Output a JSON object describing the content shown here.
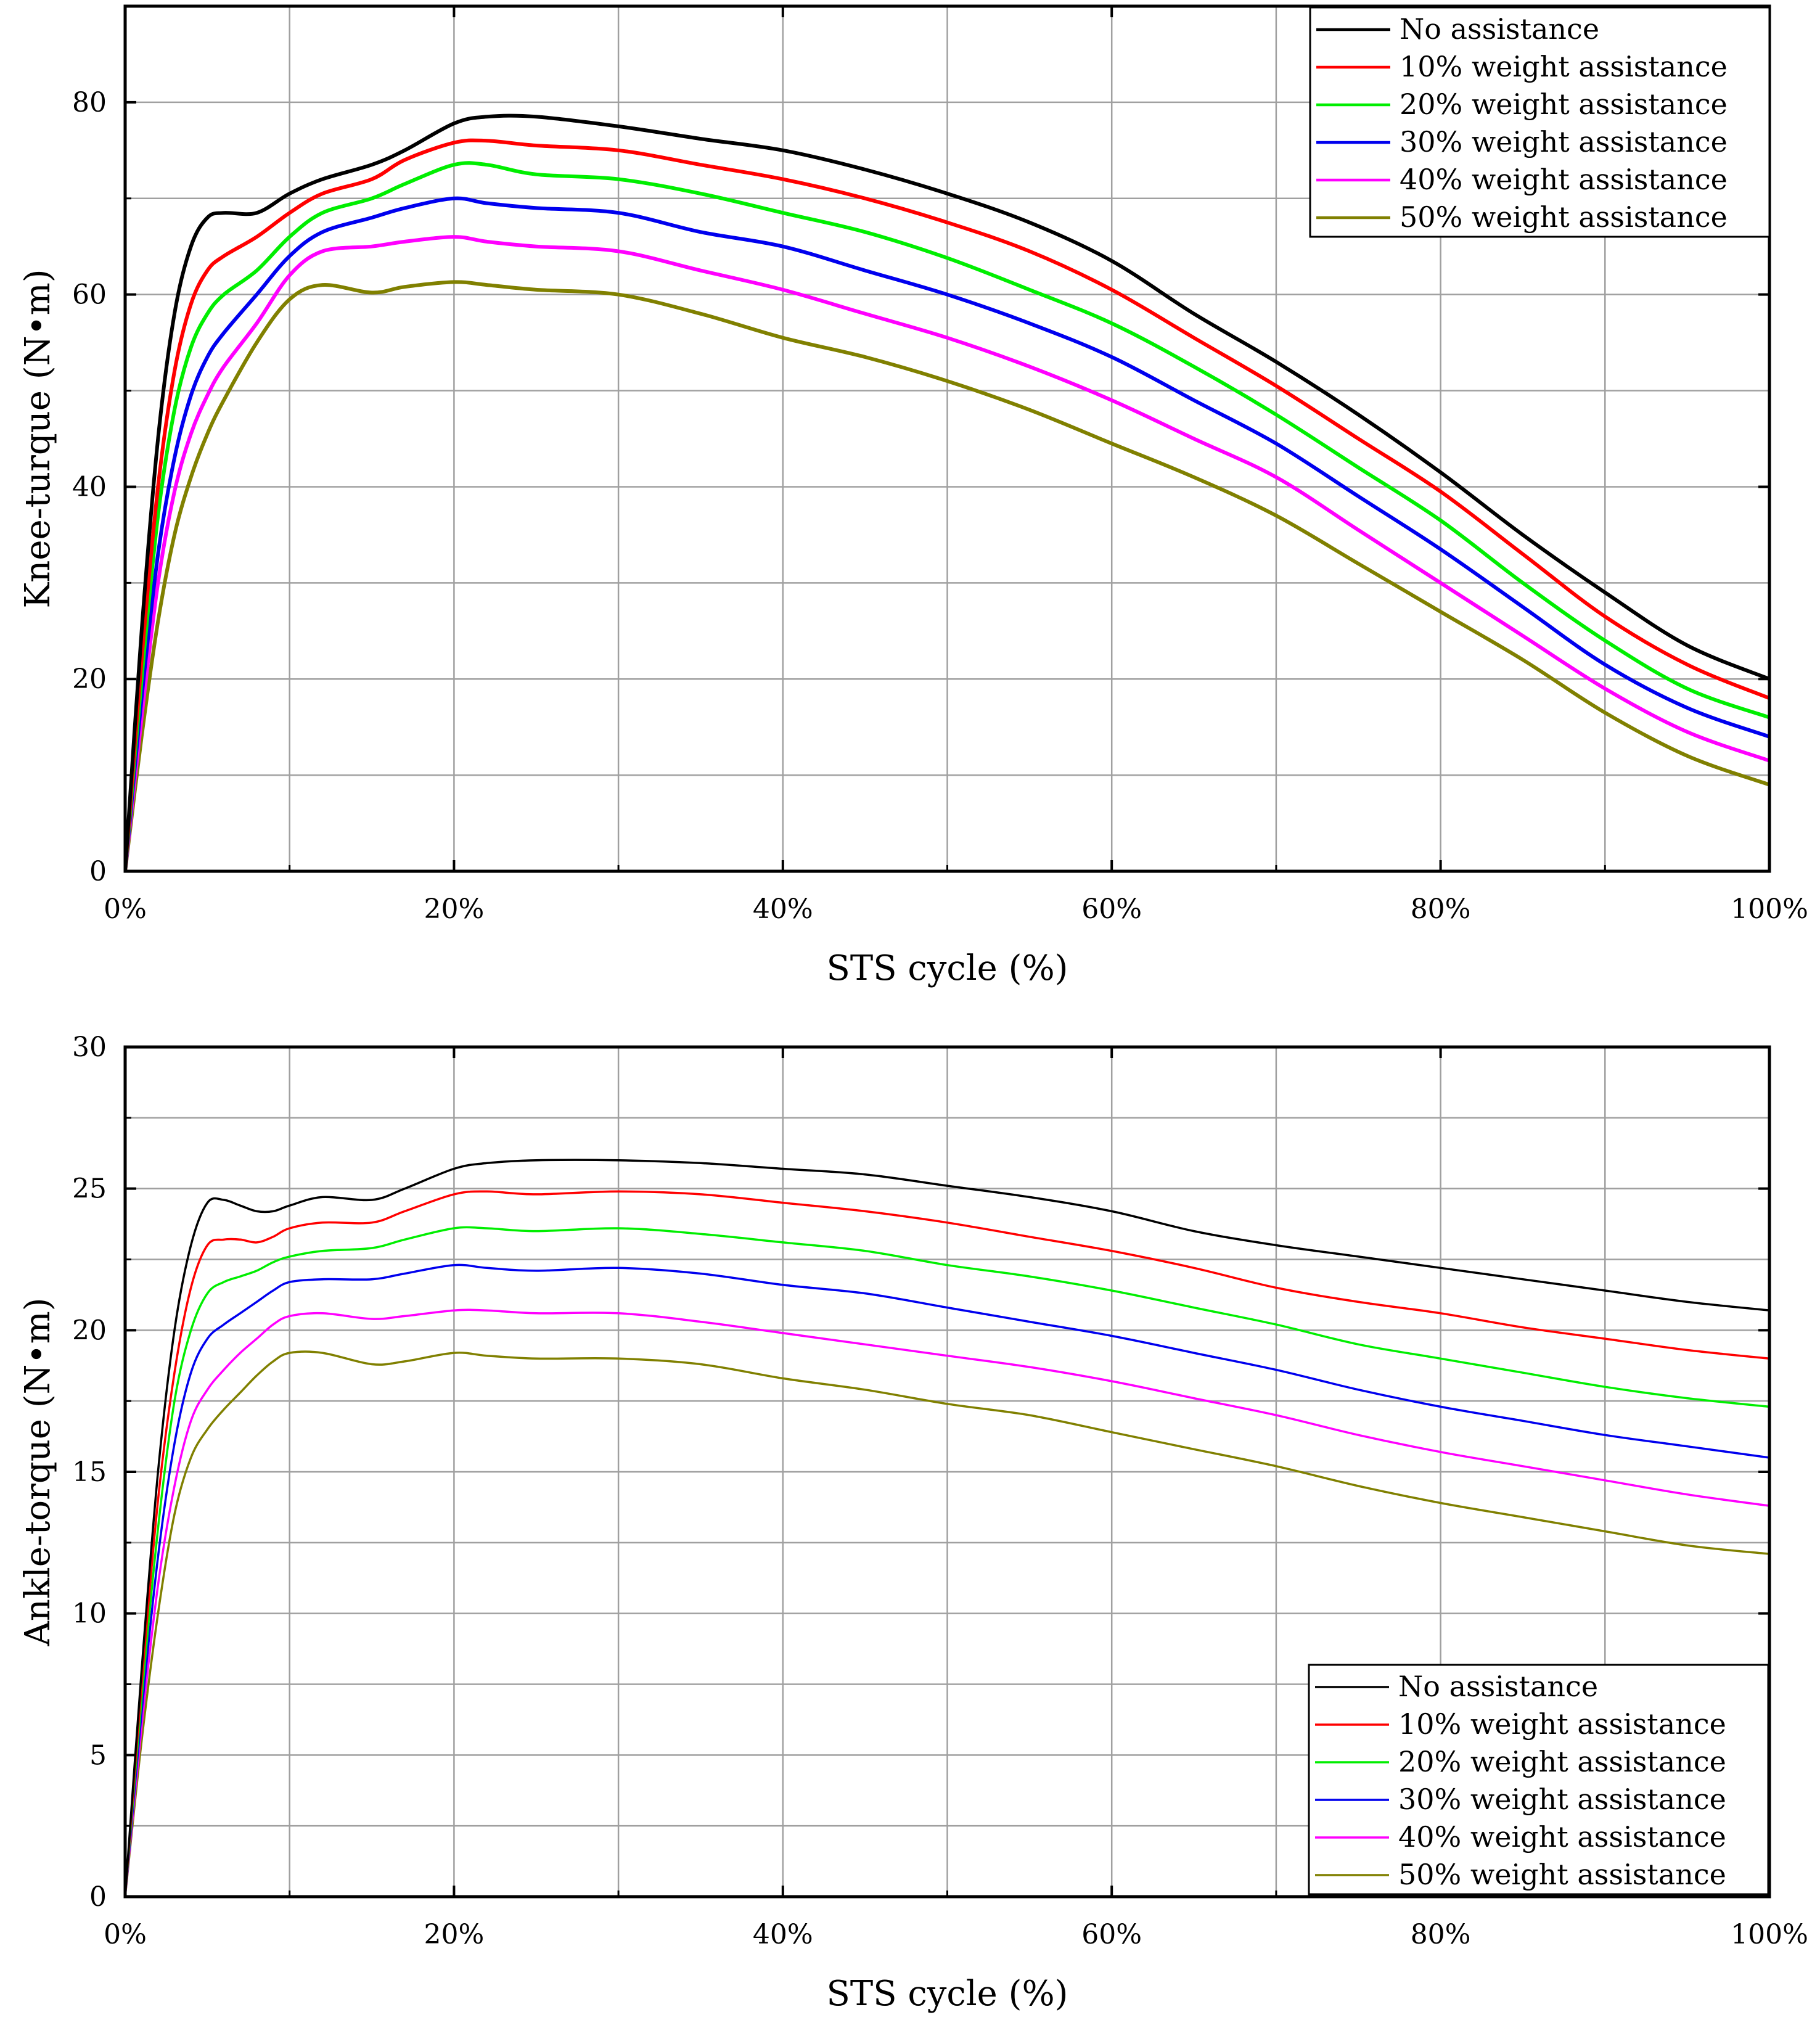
{
  "chart_data": [
    {
      "type": "line",
      "id": "knee",
      "title": "",
      "xlabel": "STS cycle (%)",
      "ylabel": "Knee-turque (N•m)",
      "xlim": [
        0,
        100
      ],
      "ylim": [
        0,
        90
      ],
      "xticks": [
        0,
        20,
        40,
        60,
        80,
        100
      ],
      "xtick_labels": [
        "0%",
        "20%",
        "40%",
        "60%",
        "80%",
        "100%"
      ],
      "yticks": [
        0,
        20,
        40,
        60,
        80
      ],
      "ytick_labels": [
        "0",
        "20",
        "40",
        "60",
        "80"
      ],
      "grid": true,
      "legend_position": "top-right",
      "series": [
        {
          "name": "No assistance",
          "color": "#000000",
          "x": [
            0,
            1,
            2,
            3,
            4,
            5,
            6,
            8,
            10,
            12,
            15,
            17,
            20,
            22,
            25,
            30,
            35,
            40,
            45,
            50,
            55,
            60,
            65,
            70,
            75,
            80,
            85,
            90,
            95,
            100
          ],
          "y": [
            0,
            25,
            45,
            58,
            65,
            68,
            68.5,
            68.5,
            70.5,
            72,
            73.5,
            75,
            77.8,
            78.5,
            78.5,
            77.5,
            76.2,
            75,
            73,
            70.5,
            67.5,
            63.5,
            58,
            53,
            47.5,
            41.5,
            35,
            29,
            23.5,
            20
          ]
        },
        {
          "name": "10% weight assistance",
          "color": "#ff0000",
          "x": [
            0,
            1,
            2,
            3,
            4,
            5,
            6,
            8,
            10,
            12,
            15,
            17,
            20,
            22,
            25,
            30,
            35,
            40,
            45,
            50,
            55,
            60,
            65,
            70,
            75,
            80,
            85,
            90,
            95,
            100
          ],
          "y": [
            0,
            22,
            40,
            52,
            59,
            62.5,
            64,
            66,
            68.5,
            70.5,
            72,
            74,
            75.8,
            76,
            75.5,
            75,
            73.5,
            72,
            70,
            67.5,
            64.5,
            60.5,
            55.5,
            50.5,
            45,
            39.5,
            33,
            26.5,
            21.5,
            18
          ]
        },
        {
          "name": "20% weight assistance",
          "color": "#00ee00",
          "x": [
            0,
            1,
            2,
            3,
            4,
            5,
            6,
            8,
            10,
            12,
            15,
            17,
            20,
            22,
            25,
            30,
            35,
            40,
            45,
            50,
            55,
            60,
            65,
            70,
            75,
            80,
            85,
            90,
            95,
            100
          ],
          "y": [
            0,
            20,
            37,
            48,
            54.5,
            58,
            60,
            62.5,
            66,
            68.5,
            70,
            71.5,
            73.5,
            73.5,
            72.5,
            72,
            70.5,
            68.5,
            66.5,
            63.8,
            60.5,
            57,
            52.5,
            47.5,
            42,
            36.5,
            30,
            24,
            19,
            16
          ]
        },
        {
          "name": "30% weight assistance",
          "color": "#0000ee",
          "x": [
            0,
            1,
            2,
            3,
            4,
            5,
            6,
            8,
            10,
            12,
            15,
            17,
            20,
            22,
            25,
            30,
            35,
            40,
            45,
            50,
            55,
            60,
            65,
            70,
            75,
            80,
            85,
            90,
            95,
            100
          ],
          "y": [
            0,
            18,
            33,
            43,
            49.5,
            53.5,
            56,
            60,
            64,
            66.5,
            68,
            69,
            70,
            69.5,
            69,
            68.5,
            66.5,
            65,
            62.5,
            60,
            57,
            53.5,
            49,
            44.5,
            39,
            33.5,
            27.5,
            21.5,
            17,
            14
          ]
        },
        {
          "name": "40% weight assistance",
          "color": "#ff00ff",
          "x": [
            0,
            1,
            2,
            3,
            4,
            5,
            6,
            8,
            10,
            12,
            15,
            17,
            20,
            22,
            25,
            30,
            35,
            40,
            45,
            50,
            55,
            60,
            65,
            70,
            75,
            80,
            85,
            90,
            95,
            100
          ],
          "y": [
            0,
            16,
            30,
            39.5,
            45.5,
            49.5,
            52.5,
            57,
            62,
            64.5,
            65,
            65.5,
            66,
            65.5,
            65,
            64.5,
            62.5,
            60.5,
            58,
            55.5,
            52.5,
            49,
            45,
            41,
            35.5,
            30,
            24.5,
            19,
            14.5,
            11.5
          ]
        },
        {
          "name": "50% weight assistance",
          "color": "#808000",
          "x": [
            0,
            1,
            2,
            3,
            4,
            5,
            6,
            8,
            10,
            12,
            15,
            17,
            20,
            22,
            25,
            30,
            35,
            40,
            45,
            50,
            55,
            60,
            65,
            70,
            75,
            80,
            85,
            90,
            95,
            100
          ],
          "y": [
            0,
            14,
            26,
            35,
            41,
            45.5,
            49,
            55,
            59.5,
            61,
            60.2,
            60.8,
            61.3,
            61,
            60.5,
            60,
            58,
            55.5,
            53.5,
            51,
            48,
            44.5,
            41,
            37,
            32,
            27,
            22,
            16.5,
            12,
            9
          ]
        }
      ]
    },
    {
      "type": "line",
      "id": "ankle",
      "title": "",
      "xlabel": "STS cycle (%)",
      "ylabel": "Ankle-torque (N•m)",
      "xlim": [
        0,
        100
      ],
      "ylim": [
        0,
        30
      ],
      "xticks": [
        0,
        20,
        40,
        60,
        80,
        100
      ],
      "xtick_labels": [
        "0%",
        "20%",
        "40%",
        "60%",
        "80%",
        "100%"
      ],
      "yticks": [
        0,
        5,
        10,
        15,
        20,
        25,
        30
      ],
      "ytick_labels": [
        "0",
        "5",
        "10",
        "15",
        "20",
        "25",
        "30"
      ],
      "grid": true,
      "legend_position": "bottom-right",
      "series": [
        {
          "name": "No assistance",
          "color": "#000000",
          "x": [
            0,
            1,
            2,
            3,
            4,
            5,
            6,
            7,
            8,
            9,
            10,
            12,
            15,
            17,
            20,
            22,
            25,
            30,
            35,
            40,
            45,
            50,
            55,
            60,
            65,
            70,
            75,
            80,
            85,
            90,
            95,
            100
          ],
          "y": [
            0,
            8,
            15,
            20,
            23,
            24.5,
            24.6,
            24.4,
            24.2,
            24.2,
            24.4,
            24.7,
            24.6,
            25,
            25.7,
            25.9,
            26,
            26,
            25.9,
            25.7,
            25.5,
            25.1,
            24.7,
            24.2,
            23.5,
            23,
            22.6,
            22.2,
            21.8,
            21.4,
            21,
            20.7
          ]
        },
        {
          "name": "10% weight assistance",
          "color": "#ff0000",
          "x": [
            0,
            1,
            2,
            3,
            4,
            5,
            6,
            7,
            8,
            9,
            10,
            12,
            15,
            17,
            20,
            22,
            25,
            30,
            35,
            40,
            45,
            50,
            55,
            60,
            65,
            70,
            75,
            80,
            85,
            90,
            95,
            100
          ],
          "y": [
            0,
            7.5,
            14,
            18.5,
            21.5,
            23,
            23.2,
            23.2,
            23.1,
            23.3,
            23.6,
            23.8,
            23.8,
            24.2,
            24.8,
            24.9,
            24.8,
            24.9,
            24.8,
            24.5,
            24.2,
            23.8,
            23.3,
            22.8,
            22.2,
            21.5,
            21,
            20.6,
            20.1,
            19.7,
            19.3,
            19
          ]
        },
        {
          "name": "20% weight assistance",
          "color": "#00ee00",
          "x": [
            0,
            1,
            2,
            3,
            4,
            5,
            6,
            7,
            8,
            9,
            10,
            12,
            15,
            17,
            20,
            22,
            25,
            30,
            35,
            40,
            45,
            50,
            55,
            60,
            65,
            70,
            75,
            80,
            85,
            90,
            95,
            100
          ],
          "y": [
            0,
            7,
            13,
            17.5,
            20,
            21.3,
            21.7,
            21.9,
            22.1,
            22.4,
            22.6,
            22.8,
            22.9,
            23.2,
            23.6,
            23.6,
            23.5,
            23.6,
            23.4,
            23.1,
            22.8,
            22.3,
            21.9,
            21.4,
            20.8,
            20.2,
            19.5,
            19,
            18.5,
            18,
            17.6,
            17.3
          ]
        },
        {
          "name": "30% weight assistance",
          "color": "#0000ee",
          "x": [
            0,
            1,
            2,
            3,
            4,
            5,
            6,
            7,
            8,
            9,
            10,
            12,
            15,
            17,
            20,
            22,
            25,
            30,
            35,
            40,
            45,
            50,
            55,
            60,
            65,
            70,
            75,
            80,
            85,
            90,
            95,
            100
          ],
          "y": [
            0,
            6.5,
            12,
            16,
            18.5,
            19.7,
            20.2,
            20.6,
            21,
            21.4,
            21.7,
            21.8,
            21.8,
            22,
            22.3,
            22.2,
            22.1,
            22.2,
            22,
            21.6,
            21.3,
            20.8,
            20.3,
            19.8,
            19.2,
            18.6,
            17.9,
            17.3,
            16.8,
            16.3,
            15.9,
            15.5
          ]
        },
        {
          "name": "40% weight assistance",
          "color": "#ff00ff",
          "x": [
            0,
            1,
            2,
            3,
            4,
            5,
            6,
            7,
            8,
            9,
            10,
            12,
            15,
            17,
            20,
            22,
            25,
            30,
            35,
            40,
            45,
            50,
            55,
            60,
            65,
            70,
            75,
            80,
            85,
            90,
            95,
            100
          ],
          "y": [
            0,
            6,
            11,
            14.5,
            16.8,
            17.9,
            18.6,
            19.2,
            19.7,
            20.2,
            20.5,
            20.6,
            20.4,
            20.5,
            20.7,
            20.7,
            20.6,
            20.6,
            20.3,
            19.9,
            19.5,
            19.1,
            18.7,
            18.2,
            17.6,
            17,
            16.3,
            15.7,
            15.2,
            14.7,
            14.2,
            13.8
          ]
        },
        {
          "name": "50% weight assistance",
          "color": "#808000",
          "x": [
            0,
            1,
            2,
            3,
            4,
            5,
            6,
            7,
            8,
            9,
            10,
            12,
            15,
            17,
            20,
            22,
            25,
            30,
            35,
            40,
            45,
            50,
            55,
            60,
            65,
            70,
            75,
            80,
            85,
            90,
            95,
            100
          ],
          "y": [
            0,
            5.5,
            10,
            13.5,
            15.5,
            16.5,
            17.2,
            17.8,
            18.4,
            18.9,
            19.2,
            19.2,
            18.8,
            18.9,
            19.2,
            19.1,
            19,
            19,
            18.8,
            18.3,
            17.9,
            17.4,
            17,
            16.4,
            15.8,
            15.2,
            14.5,
            13.9,
            13.4,
            12.9,
            12.4,
            12.1
          ]
        }
      ]
    }
  ]
}
